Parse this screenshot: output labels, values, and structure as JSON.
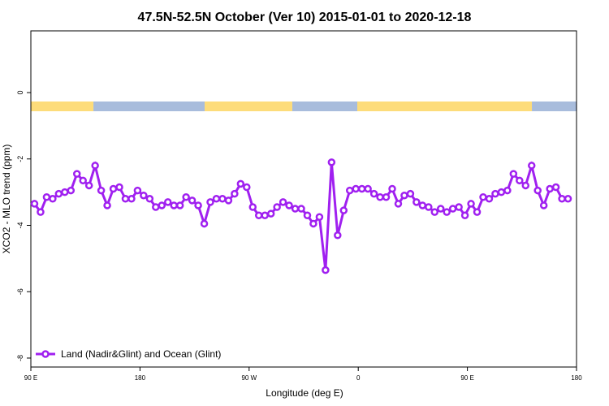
{
  "chart_data": {
    "type": "line",
    "title": "47.5N-52.5N October (Ver 10)   2015-01-01 to 2020-12-18",
    "x_label": "Longitude (deg E)",
    "y_label": "XCO2 - MLO trend (ppm)",
    "xlim": [
      90,
      540
    ],
    "ylim": [
      -8.27,
      1.86
    ],
    "xticks": [
      {
        "value": 90,
        "label": "90 E"
      },
      180,
      {
        "value": 270,
        "label": "90 W"
      },
      {
        "value": 360,
        "label": "0"
      },
      {
        "value": 450,
        "label": "90 E"
      },
      180
    ],
    "yticks": [
      0,
      -2,
      -4,
      -6,
      -8
    ],
    "legend": "bottom-left",
    "surface_band": [
      {
        "from": 90,
        "to": 141.6,
        "color": "#fddc7a"
      },
      {
        "from": 141.6,
        "to": 233.3,
        "color": "#a8bcdc"
      },
      {
        "from": 233.3,
        "to": 305.6,
        "color": "#fddc7a"
      },
      {
        "from": 305.6,
        "to": 359.2,
        "color": "#a8bcdc"
      },
      {
        "from": 359.2,
        "to": 503.2,
        "color": "#fddc7a"
      },
      {
        "from": 503.2,
        "to": 540,
        "color": "#a8bcdc"
      }
    ],
    "x": [
      93,
      98,
      103,
      108,
      113,
      118,
      123,
      128,
      133,
      138,
      143,
      148,
      153,
      158,
      163,
      168,
      173,
      178,
      183,
      188,
      193,
      198,
      203,
      208,
      213,
      218,
      223,
      228,
      233,
      238,
      243,
      248,
      253,
      258,
      263,
      268,
      273,
      278,
      283,
      288,
      293,
      298,
      303,
      308,
      313,
      318,
      323,
      328,
      333,
      338,
      343,
      348,
      353,
      358,
      363,
      368,
      373,
      378,
      383,
      388,
      393,
      398,
      403,
      408,
      413,
      418,
      423,
      428,
      433,
      438,
      443,
      448,
      453,
      458,
      463,
      468,
      473,
      478,
      483,
      488,
      493,
      498,
      503,
      508,
      513,
      518,
      523,
      528,
      533
    ],
    "series": [
      {
        "name": "Land (Nadir&Glint) and Ocean (Glint)",
        "color": "#a020f0",
        "values": [
          -3.35,
          -3.6,
          -3.15,
          -3.2,
          -3.05,
          -3.0,
          -2.95,
          -2.45,
          -2.65,
          -2.8,
          -2.2,
          -2.95,
          -3.4,
          -2.9,
          -2.85,
          -3.2,
          -3.2,
          -2.95,
          -3.1,
          -3.2,
          -3.45,
          -3.4,
          -3.3,
          -3.4,
          -3.4,
          -3.15,
          -3.25,
          -3.4,
          -3.95,
          -3.3,
          -3.2,
          -3.2,
          -3.25,
          -3.05,
          -2.75,
          -2.85,
          -3.45,
          -3.7,
          -3.7,
          -3.65,
          -3.45,
          -3.3,
          -3.4,
          -3.5,
          -3.5,
          -3.7,
          -3.95,
          -3.75,
          -5.35,
          -2.1,
          -4.3,
          -3.55,
          -2.95,
          -2.9,
          -2.9,
          -2.9,
          -3.05,
          -3.15,
          -3.15,
          -2.9,
          -3.35,
          -3.1,
          -3.05,
          -3.3,
          -3.4,
          -3.45,
          -3.6,
          -3.5,
          -3.6,
          -3.5,
          -3.45,
          -3.7,
          -3.35,
          -3.6,
          -3.15,
          -3.2,
          -3.05,
          -3.0,
          -2.95,
          -2.45,
          -2.65,
          -2.8,
          -2.2,
          -2.95,
          -3.4,
          -2.9,
          -2.85,
          -3.2,
          -3.2
        ]
      }
    ]
  }
}
